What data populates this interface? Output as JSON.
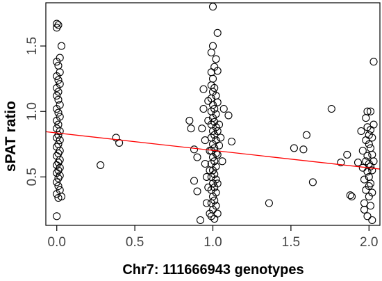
{
  "chart_data": {
    "type": "scatter",
    "title": "",
    "xlabel": "Chr7: 111666943 genotypes",
    "ylabel": "sPAT ratio",
    "xlim": [
      -0.07,
      2.07
    ],
    "ylim": [
      0.13,
      1.83
    ],
    "xticks": [
      0.0,
      0.5,
      1.0,
      1.5,
      2.0
    ],
    "xtick_labels": [
      "0.0",
      "0.5",
      "1.0",
      "1.5",
      "2.0"
    ],
    "yticks": [
      0.5,
      1.0,
      1.5
    ],
    "ytick_labels": [
      "0.5",
      "1.0",
      "1.5"
    ],
    "grid": false,
    "legend": null,
    "marker": "open-circle",
    "point_color": "#000000",
    "regression_line": {
      "x": [
        -0.07,
        2.07
      ],
      "y": [
        0.845,
        0.56
      ],
      "color": "#ff0000"
    },
    "points": [
      [
        0.0,
        1.67
      ],
      [
        0.01,
        1.66
      ],
      [
        0.0,
        1.64
      ],
      [
        0.03,
        1.5
      ],
      [
        0.02,
        1.41
      ],
      [
        0.0,
        1.38
      ],
      [
        0.01,
        1.35
      ],
      [
        0.02,
        1.3
      ],
      [
        0.0,
        1.27
      ],
      [
        0.01,
        1.24
      ],
      [
        0.02,
        1.21
      ],
      [
        0.0,
        1.18
      ],
      [
        0.01,
        1.15
      ],
      [
        0.0,
        1.12
      ],
      [
        0.01,
        1.09
      ],
      [
        0.02,
        1.05
      ],
      [
        0.0,
        1.02
      ],
      [
        0.01,
        0.99
      ],
      [
        0.02,
        0.96
      ],
      [
        0.0,
        0.93
      ],
      [
        0.01,
        0.9
      ],
      [
        0.0,
        0.87
      ],
      [
        0.02,
        0.85
      ],
      [
        0.01,
        0.82
      ],
      [
        0.0,
        0.8
      ],
      [
        0.02,
        0.78
      ],
      [
        0.01,
        0.75
      ],
      [
        0.0,
        0.73
      ],
      [
        0.02,
        0.7
      ],
      [
        0.01,
        0.68
      ],
      [
        0.0,
        0.66
      ],
      [
        0.02,
        0.63
      ],
      [
        0.01,
        0.61
      ],
      [
        0.0,
        0.59
      ],
      [
        0.02,
        0.57
      ],
      [
        0.01,
        0.55
      ],
      [
        0.0,
        0.53
      ],
      [
        0.02,
        0.51
      ],
      [
        0.01,
        0.49
      ],
      [
        0.0,
        0.46
      ],
      [
        0.01,
        0.43
      ],
      [
        0.02,
        0.4
      ],
      [
        0.0,
        0.37
      ],
      [
        0.03,
        0.35
      ],
      [
        0.01,
        0.34
      ],
      [
        0.0,
        0.2
      ],
      [
        0.28,
        0.59
      ],
      [
        0.38,
        0.8
      ],
      [
        0.4,
        0.76
      ],
      [
        0.85,
        0.93
      ],
      [
        0.86,
        0.87
      ],
      [
        0.88,
        0.71
      ],
      [
        0.9,
        0.65
      ],
      [
        0.88,
        0.47
      ],
      [
        0.9,
        0.39
      ],
      [
        0.92,
        0.17
      ],
      [
        0.94,
        1.17
      ],
      [
        0.94,
        1.02
      ],
      [
        0.93,
        0.87
      ],
      [
        0.95,
        0.78
      ],
      [
        0.95,
        0.6
      ],
      [
        0.96,
        0.5
      ],
      [
        0.96,
        0.3
      ],
      [
        0.97,
        1.08
      ],
      [
        0.97,
        0.93
      ],
      [
        0.98,
        0.7
      ],
      [
        0.98,
        0.55
      ],
      [
        0.97,
        0.42
      ],
      [
        0.98,
        0.22
      ],
      [
        0.99,
        1.45
      ],
      [
        0.99,
        1.3
      ],
      [
        0.99,
        1.2
      ],
      [
        0.99,
        1.1
      ],
      [
        0.99,
        1.0
      ],
      [
        0.99,
        0.9
      ],
      [
        0.99,
        0.8
      ],
      [
        0.99,
        0.7
      ],
      [
        0.99,
        0.6
      ],
      [
        0.99,
        0.5
      ],
      [
        0.99,
        0.4
      ],
      [
        0.99,
        0.3
      ],
      [
        0.99,
        0.2
      ],
      [
        1.0,
        1.8
      ],
      [
        1.0,
        1.5
      ],
      [
        1.0,
        1.25
      ],
      [
        1.0,
        1.15
      ],
      [
        1.0,
        1.05
      ],
      [
        1.0,
        0.95
      ],
      [
        1.0,
        0.85
      ],
      [
        1.0,
        0.75
      ],
      [
        1.0,
        0.65
      ],
      [
        1.0,
        0.55
      ],
      [
        1.0,
        0.45
      ],
      [
        1.0,
        0.35
      ],
      [
        1.0,
        0.25
      ],
      [
        1.01,
        1.34
      ],
      [
        1.01,
        1.18
      ],
      [
        1.01,
        1.02
      ],
      [
        1.01,
        0.92
      ],
      [
        1.01,
        0.82
      ],
      [
        1.01,
        0.72
      ],
      [
        1.01,
        0.62
      ],
      [
        1.01,
        0.52
      ],
      [
        1.01,
        0.42
      ],
      [
        1.01,
        0.32
      ],
      [
        1.01,
        0.18
      ],
      [
        1.02,
        1.4
      ],
      [
        1.02,
        1.12
      ],
      [
        1.02,
        0.98
      ],
      [
        1.02,
        0.88
      ],
      [
        1.02,
        0.78
      ],
      [
        1.02,
        0.68
      ],
      [
        1.02,
        0.58
      ],
      [
        1.02,
        0.48
      ],
      [
        1.02,
        0.38
      ],
      [
        1.02,
        0.28
      ],
      [
        1.03,
        1.6
      ],
      [
        1.03,
        1.31
      ],
      [
        1.03,
        1.07
      ],
      [
        1.03,
        0.85
      ],
      [
        1.03,
        0.67
      ],
      [
        1.03,
        0.45
      ],
      [
        1.03,
        0.22
      ],
      [
        1.04,
        0.9
      ],
      [
        1.04,
        0.74
      ],
      [
        1.05,
        0.8
      ],
      [
        1.06,
        0.62
      ],
      [
        1.07,
        1.02
      ],
      [
        1.1,
        0.97
      ],
      [
        1.12,
        0.77
      ],
      [
        1.36,
        0.3
      ],
      [
        1.52,
        0.72
      ],
      [
        1.58,
        0.71
      ],
      [
        1.6,
        0.82
      ],
      [
        1.64,
        0.46
      ],
      [
        1.76,
        1.02
      ],
      [
        1.82,
        0.61
      ],
      [
        1.86,
        0.67
      ],
      [
        1.88,
        0.36
      ],
      [
        1.89,
        0.35
      ],
      [
        1.93,
        0.61
      ],
      [
        1.95,
        0.85
      ],
      [
        1.96,
        0.7
      ],
      [
        1.96,
        0.57
      ],
      [
        1.97,
        0.48
      ],
      [
        1.97,
        0.3
      ],
      [
        1.97,
        0.25
      ],
      [
        1.98,
        0.95
      ],
      [
        1.98,
        0.78
      ],
      [
        1.98,
        0.62
      ],
      [
        1.98,
        0.4
      ],
      [
        1.99,
        1.0
      ],
      [
        1.99,
        0.88
      ],
      [
        1.99,
        0.66
      ],
      [
        1.99,
        0.54
      ],
      [
        1.99,
        0.2
      ],
      [
        2.0,
        0.82
      ],
      [
        2.0,
        0.75
      ],
      [
        2.0,
        0.6
      ],
      [
        2.0,
        0.5
      ],
      [
        2.0,
        0.43
      ],
      [
        2.0,
        0.35
      ],
      [
        2.01,
        1.0
      ],
      [
        2.01,
        0.86
      ],
      [
        2.01,
        0.72
      ],
      [
        2.01,
        0.58
      ],
      [
        2.01,
        0.45
      ],
      [
        2.01,
        0.28
      ],
      [
        2.02,
        0.8
      ],
      [
        2.02,
        0.67
      ],
      [
        2.02,
        0.55
      ],
      [
        2.02,
        0.38
      ],
      [
        2.02,
        0.17
      ],
      [
        2.03,
        1.38
      ],
      [
        2.03,
        0.9
      ],
      [
        2.03,
        0.62
      ]
    ]
  }
}
